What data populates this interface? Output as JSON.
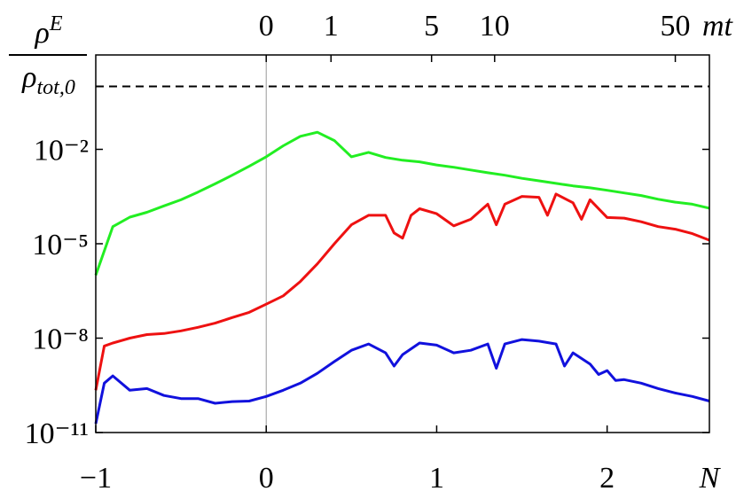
{
  "chart_data": {
    "type": "line",
    "y_label": {
      "numerator": "ρ",
      "numerator_sup": "E",
      "denominator": "ρ",
      "denominator_sub": "tot,0"
    },
    "x_label": "N",
    "x2_label": "mt",
    "xlim": [
      -1,
      2.6
    ],
    "xticks": [
      {
        "value": -1,
        "label": "−1"
      },
      0,
      1,
      2
    ],
    "x2ticks": [
      {
        "value": 0,
        "label": "0"
      },
      {
        "value": 0.38,
        "label": "1"
      },
      {
        "value": 0.97,
        "label": "5"
      },
      {
        "value": 1.34,
        "label": "10"
      },
      {
        "value": 2.4,
        "label": "50"
      }
    ],
    "ylim": [
      1e-11,
      10
    ],
    "log_y": true,
    "yticks": [
      {
        "value": 1e-11,
        "label": "10⁻¹¹"
      },
      {
        "value": 1e-08,
        "label": "10⁻⁸"
      },
      {
        "value": 1e-05,
        "label": "10⁻⁵"
      },
      {
        "value": 0.01,
        "label": "10⁻²"
      }
    ],
    "hline": 1,
    "vline": 0,
    "series": [
      {
        "color": "#22ee22",
        "x": [
          -1,
          -0.9,
          -0.8,
          -0.7,
          -0.6,
          -0.5,
          -0.4,
          -0.3,
          -0.2,
          -0.1,
          0,
          0.1,
          0.2,
          0.3,
          0.4,
          0.5,
          0.6,
          0.7,
          0.8,
          0.9,
          1,
          1.1,
          1.2,
          1.3,
          1.4,
          1.5,
          1.6,
          1.7,
          1.8,
          1.9,
          2,
          2.1,
          2.2,
          2.3,
          2.4,
          2.5,
          2.6
        ],
        "values": [
          1e-06,
          3.5e-05,
          7e-05,
          0.0001,
          0.00016,
          0.00025,
          0.00044,
          0.0008,
          0.0015,
          0.0029,
          0.0058,
          0.013,
          0.026,
          0.035,
          0.019,
          0.0058,
          0.008,
          0.0055,
          0.0045,
          0.004,
          0.0032,
          0.0027,
          0.0022,
          0.0018,
          0.0015,
          0.0012,
          0.001,
          0.00083,
          0.00069,
          0.0006,
          0.0005,
          0.00041,
          0.00034,
          0.00026,
          0.00021,
          0.00018,
          0.000135
        ]
      },
      {
        "color": "#ee1111",
        "x": [
          -1,
          -0.95,
          -0.9,
          -0.8,
          -0.7,
          -0.6,
          -0.5,
          -0.4,
          -0.3,
          -0.2,
          -0.1,
          0,
          0.1,
          0.2,
          0.3,
          0.4,
          0.5,
          0.6,
          0.7,
          0.75,
          0.8,
          0.85,
          0.9,
          1,
          1.1,
          1.2,
          1.3,
          1.35,
          1.4,
          1.5,
          1.6,
          1.65,
          1.7,
          1.8,
          1.85,
          1.9,
          2,
          2.1,
          2.2,
          2.3,
          2.4,
          2.5,
          2.6
        ],
        "values": [
          2.2e-10,
          5.6e-09,
          7e-09,
          1e-08,
          1.3e-08,
          1.4e-08,
          1.7e-08,
          2.2e-08,
          3e-08,
          4.5e-08,
          6.6e-08,
          1.2e-07,
          2.2e-07,
          6.3e-07,
          2.3e-06,
          1e-05,
          4e-05,
          8e-05,
          8e-05,
          2.2e-05,
          1.5e-05,
          8e-05,
          0.00013,
          9e-05,
          3.7e-05,
          6e-05,
          0.00018,
          4e-05,
          0.00018,
          0.00032,
          0.0003,
          8e-05,
          0.00038,
          0.0002,
          6e-05,
          0.00025,
          6.8e-05,
          6.5e-05,
          5e-05,
          3.5e-05,
          2.9e-05,
          2.1e-05,
          1.3e-05
        ]
      },
      {
        "color": "#1111dd",
        "x": [
          -1,
          -0.95,
          -0.9,
          -0.8,
          -0.7,
          -0.6,
          -0.5,
          -0.4,
          -0.3,
          -0.2,
          -0.1,
          0,
          0.1,
          0.2,
          0.3,
          0.4,
          0.5,
          0.6,
          0.7,
          0.75,
          0.8,
          0.9,
          1,
          1.1,
          1.2,
          1.3,
          1.35,
          1.4,
          1.5,
          1.6,
          1.7,
          1.75,
          1.8,
          1.9,
          1.95,
          2,
          2.05,
          2.1,
          2.2,
          2.3,
          2.4,
          2.5,
          2.6
        ],
        "values": [
          1.9e-11,
          3.7e-10,
          6.3e-10,
          2.2e-10,
          2.5e-10,
          1.5e-10,
          1.2e-10,
          1.2e-10,
          8.5e-11,
          9.6e-11,
          1e-10,
          1.4e-10,
          2.2e-10,
          3.7e-10,
          7.6e-10,
          1.8e-09,
          4.1e-09,
          6.5e-09,
          3.4e-09,
          1.3e-09,
          3e-09,
          7e-09,
          6e-09,
          3.4e-09,
          4.1e-09,
          6.5e-09,
          1.1e-09,
          6.5e-09,
          9e-09,
          8e-09,
          6.5e-09,
          1.3e-09,
          3.4e-09,
          1.5e-09,
          7e-10,
          9.3e-10,
          4.5e-10,
          4.8e-10,
          3.7e-10,
          2.5e-10,
          1.8e-10,
          1.4e-10,
          1e-10
        ]
      }
    ]
  }
}
